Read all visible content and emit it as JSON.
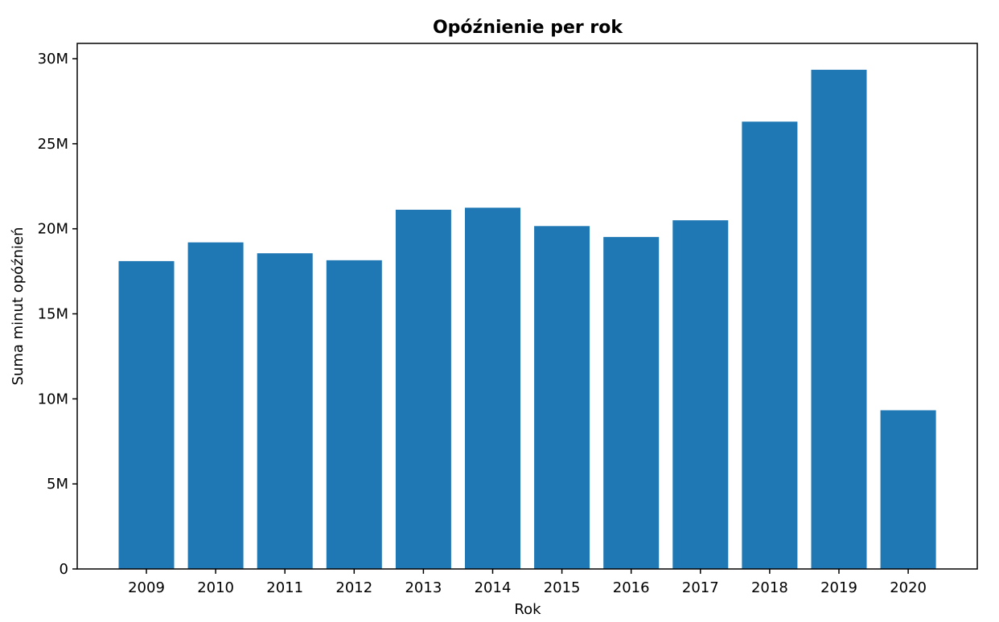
{
  "chart_data": {
    "type": "bar",
    "title": "Opóźnienie per rok",
    "xlabel": "Rok",
    "ylabel": "Suma minut opóźnień",
    "categories": [
      "2009",
      "2010",
      "2011",
      "2012",
      "2013",
      "2014",
      "2015",
      "2016",
      "2017",
      "2018",
      "2019",
      "2020"
    ],
    "values": [
      18100000,
      19200000,
      18560000,
      18150000,
      21120000,
      21240000,
      20160000,
      19520000,
      20500000,
      26300000,
      29350000,
      9330000
    ],
    "ylim": [
      0,
      30900000
    ],
    "yticks": [
      0,
      5000000,
      10000000,
      15000000,
      20000000,
      25000000,
      30000000
    ],
    "ytick_labels": [
      "0",
      "5M",
      "10M",
      "15M",
      "20M",
      "25M",
      "30M"
    ],
    "grid": false,
    "colors": {
      "bar": "#1f77b4",
      "axis": "#000000"
    }
  }
}
